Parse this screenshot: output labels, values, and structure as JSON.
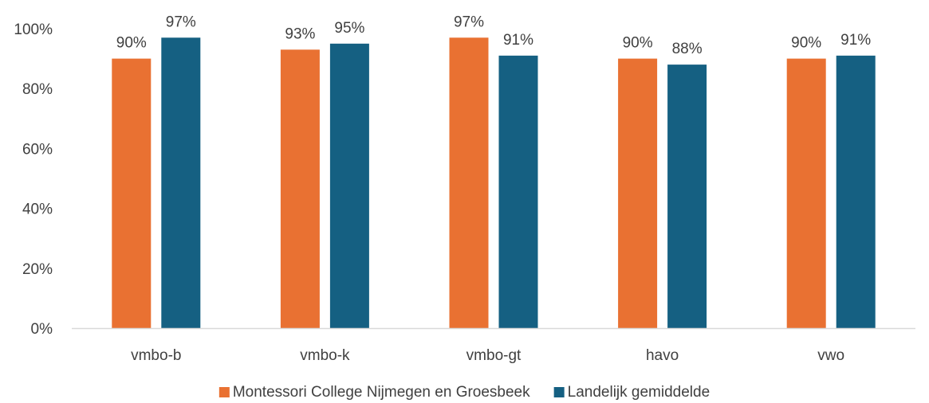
{
  "chart_data": {
    "type": "bar",
    "categories": [
      "vmbo-b",
      "vmbo-k",
      "vmbo-gt",
      "havo",
      "vwo"
    ],
    "series": [
      {
        "name": "Montessori College Nijmegen en Groesbeek",
        "values": [
          90,
          93,
          97,
          90,
          90
        ],
        "labels": [
          "90%",
          "93%",
          "97%",
          "90%",
          "90%"
        ],
        "color": "#E97132"
      },
      {
        "name": "Landelijk gemiddelde",
        "values": [
          97,
          95,
          91,
          88,
          91
        ],
        "labels": [
          "97%",
          "95%",
          "91%",
          "88%",
          "91%"
        ],
        "color": "#156082"
      }
    ],
    "y_ticks": [
      0,
      20,
      40,
      60,
      80,
      100
    ],
    "y_tick_labels": [
      "0%",
      "20%",
      "40%",
      "60%",
      "80%",
      "100%"
    ],
    "ylim": [
      0,
      100
    ],
    "title": "",
    "xlabel": "",
    "ylabel": "",
    "grid": false,
    "legend_position": "bottom",
    "axis_color": "#D9D9D9"
  }
}
